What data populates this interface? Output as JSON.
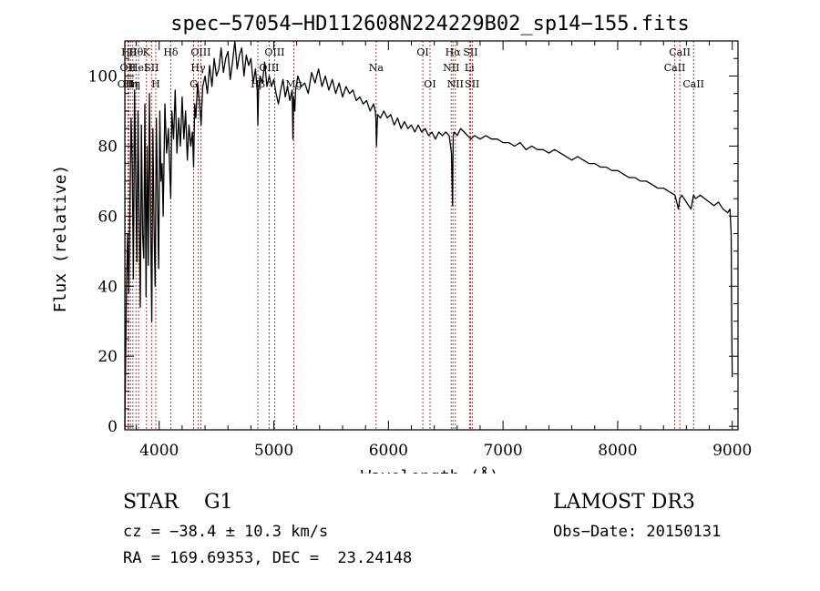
{
  "chart_data": {
    "type": "line",
    "title": "spec−57054−HD112608N224229B02_sp14−155.fits",
    "xlabel": "Wavelength (Å)",
    "ylabel": "Flux (relative)",
    "xlim": [
      3700,
      9050
    ],
    "ylim": [
      -1,
      110
    ],
    "xticks": [
      4000,
      5000,
      6000,
      7000,
      8000,
      9000
    ],
    "yticks": [
      0,
      20,
      40,
      60,
      80,
      100
    ],
    "series": [
      {
        "name": "spectrum",
        "x": [
          3700,
          3705,
          3715,
          3725,
          3735,
          3745,
          3755,
          3765,
          3775,
          3785,
          3795,
          3805,
          3815,
          3825,
          3835,
          3845,
          3855,
          3865,
          3875,
          3885,
          3895,
          3905,
          3915,
          3925,
          3935,
          3945,
          3955,
          3965,
          3975,
          3985,
          3995,
          4005,
          4015,
          4025,
          4035,
          4050,
          4065,
          4080,
          4095,
          4101,
          4110,
          4125,
          4140,
          4155,
          4170,
          4185,
          4200,
          4215,
          4230,
          4245,
          4260,
          4275,
          4290,
          4300,
          4310,
          4320,
          4335,
          4350,
          4365,
          4380,
          4400,
          4420,
          4440,
          4460,
          4480,
          4500,
          4520,
          4540,
          4560,
          4580,
          4600,
          4620,
          4640,
          4660,
          4680,
          4700,
          4720,
          4740,
          4760,
          4780,
          4800,
          4820,
          4840,
          4855,
          4861,
          4867,
          4880,
          4900,
          4920,
          4940,
          4960,
          4980,
          5000,
          5020,
          5040,
          5060,
          5080,
          5100,
          5120,
          5140,
          5160,
          5167,
          5173,
          5183,
          5190,
          5210,
          5240,
          5270,
          5300,
          5330,
          5360,
          5390,
          5420,
          5450,
          5480,
          5510,
          5540,
          5570,
          5600,
          5630,
          5660,
          5690,
          5720,
          5750,
          5780,
          5810,
          5840,
          5870,
          5885,
          5890,
          5896,
          5905,
          5930,
          5960,
          5990,
          6020,
          6050,
          6080,
          6110,
          6140,
          6170,
          6200,
          6230,
          6260,
          6290,
          6320,
          6350,
          6380,
          6410,
          6440,
          6470,
          6500,
          6530,
          6550,
          6560,
          6563,
          6566,
          6575,
          6600,
          6630,
          6660,
          6690,
          6720,
          6750,
          6800,
          6850,
          6900,
          6950,
          7000,
          7050,
          7100,
          7150,
          7200,
          7250,
          7300,
          7350,
          7400,
          7450,
          7500,
          7550,
          7600,
          7650,
          7700,
          7750,
          7800,
          7850,
          7900,
          7950,
          8000,
          8050,
          8100,
          8150,
          8200,
          8250,
          8300,
          8350,
          8400,
          8450,
          8500,
          8530,
          8542,
          8560,
          8600,
          8640,
          8662,
          8680,
          8720,
          8760,
          8800,
          8840,
          8880,
          8920,
          8960,
          8980,
          8990,
          8995,
          9000
        ],
        "values": [
          0,
          12,
          40,
          55,
          38,
          65,
          88,
          74,
          42,
          96,
          70,
          47,
          90,
          60,
          34,
          86,
          55,
          48,
          92,
          37,
          80,
          46,
          95,
          60,
          30,
          85,
          57,
          40,
          88,
          65,
          45,
          90,
          70,
          75,
          60,
          92,
          78,
          85,
          70,
          65,
          90,
          82,
          96,
          78,
          88,
          80,
          94,
          82,
          90,
          76,
          86,
          80,
          84,
          74,
          92,
          88,
          98,
          93,
          86,
          97,
          100,
          95,
          103,
          97,
          105,
          100,
          102,
          108,
          101,
          105,
          107,
          99,
          104,
          110,
          102,
          106,
          108,
          100,
          106,
          103,
          105,
          98,
          102,
          96,
          86,
          96,
          100,
          98,
          104,
          97,
          100,
          97,
          99,
          95,
          92,
          96,
          99,
          94,
          97,
          93,
          96,
          82,
          94,
          90,
          96,
          100,
          97,
          98,
          95,
          101,
          98,
          102,
          97,
          100,
          96,
          99,
          95,
          98,
          94,
          97,
          95,
          96,
          93,
          94,
          92,
          93,
          90,
          92,
          90,
          88,
          80,
          89,
          88,
          90,
          88,
          89,
          86,
          88,
          85,
          87,
          85,
          86,
          84,
          86,
          84,
          85,
          83,
          84,
          82,
          84,
          83,
          84,
          83,
          78,
          63,
          75,
          83,
          84,
          83,
          85,
          84,
          83,
          82,
          83,
          82,
          83,
          82,
          82,
          81,
          81,
          80,
          81,
          79,
          80,
          79,
          79,
          78,
          79,
          78,
          77,
          76,
          77,
          76,
          75,
          75,
          74,
          74,
          73,
          73,
          72,
          71,
          71,
          70,
          70,
          69,
          68,
          68,
          67,
          66,
          62,
          65,
          66,
          64,
          62,
          66,
          65,
          66,
          65,
          64,
          63,
          64,
          62,
          61,
          62,
          55,
          30,
          14
        ]
      }
    ],
    "lines": [
      {
        "wl": 3705,
        "label": "OII",
        "row": 2
      },
      {
        "wl": 3727,
        "label": "OII",
        "row": 1
      },
      {
        "wl": 3734,
        "label": "Hθ",
        "row": 0
      },
      {
        "wl": 3750,
        "label": "Hη",
        "row": 2
      },
      {
        "wl": 3770,
        "label": "Hη",
        "row": 2
      },
      {
        "wl": 3797,
        "label": "Hθ",
        "row": 0
      },
      {
        "wl": 3820,
        "label": "HeI",
        "row": 1
      },
      {
        "wl": 3889,
        "label": "K",
        "row": 0
      },
      {
        "wl": 3933,
        "label": "SII",
        "row": 1
      },
      {
        "wl": 3970,
        "label": "H",
        "row": 2
      },
      {
        "wl": 4101,
        "label": "Hδ",
        "row": 0
      },
      {
        "wl": 4300,
        "label": "G",
        "row": 2
      },
      {
        "wl": 4340,
        "label": "Hγ",
        "row": 1
      },
      {
        "wl": 4363,
        "label": "OIII",
        "row": 0
      },
      {
        "wl": 4861,
        "label": "Hβ",
        "row": 2
      },
      {
        "wl": 4959,
        "label": "OIII",
        "row": 1
      },
      {
        "wl": 5007,
        "label": "OIII",
        "row": 0
      },
      {
        "wl": 5175,
        "label": "Mg",
        "row": 2
      },
      {
        "wl": 5893,
        "label": "Na",
        "row": 1
      },
      {
        "wl": 6300,
        "label": "OI",
        "row": 0
      },
      {
        "wl": 6363,
        "label": "OI",
        "row": 2
      },
      {
        "wl": 6548,
        "label": "NII",
        "row": 1
      },
      {
        "wl": 6563,
        "label": "Hα",
        "row": 0
      },
      {
        "wl": 6584,
        "label": "NII",
        "row": 2
      },
      {
        "wl": 6707,
        "label": "Li",
        "row": 1
      },
      {
        "wl": 6717,
        "label": "SII",
        "row": 0
      },
      {
        "wl": 6731,
        "label": "SII",
        "row": 2
      },
      {
        "wl": 8498,
        "label": "CaII",
        "row": 1
      },
      {
        "wl": 8542,
        "label": "CaII",
        "row": 0
      },
      {
        "wl": 8662,
        "label": "CaII",
        "row": 2
      }
    ]
  },
  "info": {
    "class": "STAR    G1",
    "survey": "LAMOST DR3",
    "cz": "cz = −38.4 ± 10.3 km/s",
    "obs_date": "Obs−Date: 20150131",
    "coords": "RA = 169.69353, DEC =  23.24148"
  },
  "colors": {
    "spectrum": "#000000",
    "line_markers": "#b22222",
    "axes": "#000000"
  }
}
